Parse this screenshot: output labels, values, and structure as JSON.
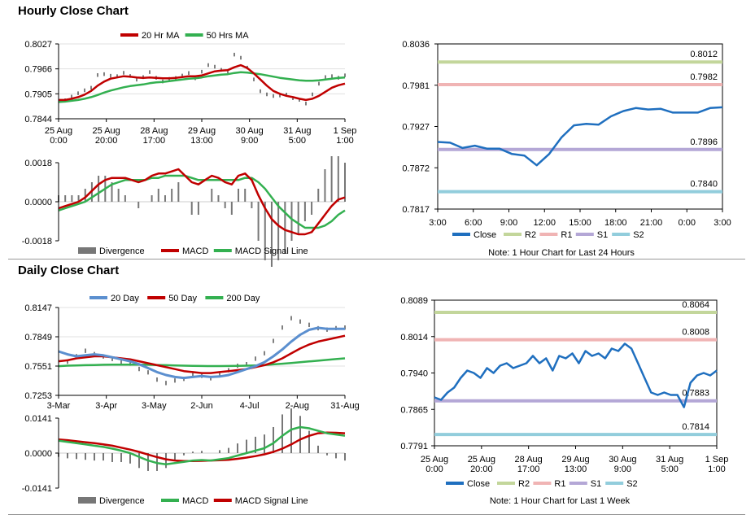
{
  "sections": {
    "hourly": {
      "title": "Hourly Close Chart"
    },
    "daily": {
      "title": "Daily Close Chart"
    }
  },
  "colors": {
    "red": "#c00000",
    "green": "#33b050",
    "blue": "#1f6fbf",
    "lightblue": "#5b8fcf",
    "r2": "#c3d69b",
    "r1": "#f0b4b4",
    "s1": "#b4a7d6",
    "s2": "#92cddc",
    "gray": "#777777"
  },
  "chart_data": [
    {
      "id": "hourly_price",
      "type": "line",
      "ylim": [
        0.7844,
        0.8027
      ],
      "yticks": [
        "0.8027",
        "0.7966",
        "0.7905",
        "0.7844"
      ],
      "xticks": [
        "25 Aug\n0:00",
        "25 Aug\n20:00",
        "28 Aug\n17:00",
        "29 Aug\n13:00",
        "30 Aug\n9:00",
        "31 Aug\n5:00",
        "1 Sep\n1:00"
      ],
      "legend": [
        "20 Hr MA",
        "50 Hrs MA"
      ],
      "close": [
        0.7895,
        0.789,
        0.7898,
        0.7905,
        0.7915,
        0.792,
        0.795,
        0.7955,
        0.795,
        0.7948,
        0.7955,
        0.795,
        0.794,
        0.7945,
        0.796,
        0.7945,
        0.7935,
        0.794,
        0.7945,
        0.795,
        0.7955,
        0.7945,
        0.796,
        0.7975,
        0.797,
        0.7965,
        0.796,
        0.8,
        0.7995,
        0.797,
        0.794,
        0.791,
        0.7905,
        0.79,
        0.79,
        0.7905,
        0.7895,
        0.789,
        0.788,
        0.7905,
        0.793,
        0.7945,
        0.795,
        0.7945,
        0.795
      ],
      "ma20": [
        0.789,
        0.789,
        0.7893,
        0.7897,
        0.7903,
        0.7912,
        0.7925,
        0.7935,
        0.7942,
        0.7945,
        0.7948,
        0.7947,
        0.7945,
        0.7944,
        0.7945,
        0.7944,
        0.7943,
        0.7943,
        0.7944,
        0.7946,
        0.7948,
        0.7948,
        0.795,
        0.7955,
        0.796,
        0.7962,
        0.7963,
        0.797,
        0.7975,
        0.7968,
        0.7955,
        0.794,
        0.7925,
        0.7912,
        0.7905,
        0.79,
        0.7897,
        0.7893,
        0.789,
        0.7893,
        0.79,
        0.791,
        0.792,
        0.7926,
        0.793
      ],
      "ma50": [
        0.7885,
        0.7886,
        0.7888,
        0.789,
        0.7893,
        0.7897,
        0.7902,
        0.7908,
        0.7913,
        0.7917,
        0.7921,
        0.7924,
        0.7926,
        0.7928,
        0.7931,
        0.7933,
        0.7934,
        0.7936,
        0.7938,
        0.794,
        0.7942,
        0.7943,
        0.7945,
        0.7948,
        0.795,
        0.7952,
        0.7953,
        0.7956,
        0.7958,
        0.7957,
        0.7955,
        0.7953,
        0.795,
        0.7947,
        0.7944,
        0.7942,
        0.794,
        0.7938,
        0.7937,
        0.7937,
        0.7938,
        0.794,
        0.7942,
        0.7944,
        0.7945
      ]
    },
    {
      "id": "hourly_macd",
      "type": "line",
      "ylim": [
        -0.0018,
        0.0018
      ],
      "yticks": [
        "0.0018",
        "0.0000",
        "-0.0018"
      ],
      "legend": [
        "Divergence",
        "MACD",
        "MACD Signal Line"
      ],
      "macd": [
        -0.0003,
        -0.0002,
        -0.0001,
        0.0,
        0.0002,
        0.0005,
        0.0008,
        0.001,
        0.0011,
        0.0011,
        0.0011,
        0.001,
        0.0009,
        0.001,
        0.0012,
        0.0013,
        0.0013,
        0.0014,
        0.0015,
        0.0012,
        0.0009,
        0.0008,
        0.001,
        0.0012,
        0.0011,
        0.0009,
        0.0008,
        0.0012,
        0.0013,
        0.001,
        0.0003,
        -0.0003,
        -0.0008,
        -0.0011,
        -0.0013,
        -0.0014,
        -0.0015,
        -0.0015,
        -0.0014,
        -0.001,
        -0.0006,
        -0.0002,
        0.0001,
        0.0002
      ],
      "signal": [
        -0.0004,
        -0.0003,
        -0.0002,
        -0.0001,
        0.0,
        0.0002,
        0.0004,
        0.0006,
        0.0008,
        0.0009,
        0.001,
        0.001,
        0.001,
        0.001,
        0.0011,
        0.0011,
        0.0012,
        0.0012,
        0.0012,
        0.0012,
        0.0011,
        0.001,
        0.001,
        0.001,
        0.001,
        0.001,
        0.001,
        0.001,
        0.0011,
        0.0011,
        0.0009,
        0.0006,
        0.0002,
        -0.0002,
        -0.0005,
        -0.0008,
        -0.001,
        -0.0012,
        -0.0012,
        -0.0012,
        -0.0011,
        -0.0009,
        -0.0006,
        -0.0004
      ]
    },
    {
      "id": "hourly_24h",
      "type": "line",
      "ylim": [
        0.7817,
        0.8036
      ],
      "yticks": [
        "0.8036",
        "0.7981",
        "0.7927",
        "0.7872",
        "0.7817"
      ],
      "xticks": [
        "3:00",
        "6:00",
        "9:00",
        "12:00",
        "15:00",
        "18:00",
        "21:00",
        "0:00",
        "3:00"
      ],
      "legend": [
        "Close",
        "R2",
        "R1",
        "S1",
        "S2"
      ],
      "levels": {
        "R2": 0.8012,
        "R1": 0.7982,
        "S1": 0.7896,
        "S2": 0.784
      },
      "level_labels": {
        "R2": "0.8012",
        "R1": "0.7982",
        "S1": "0.7896",
        "S2": "0.7840"
      },
      "close": [
        0.7906,
        0.7905,
        0.7898,
        0.7901,
        0.7897,
        0.7897,
        0.789,
        0.7888,
        0.7875,
        0.789,
        0.7912,
        0.7928,
        0.793,
        0.7929,
        0.794,
        0.7947,
        0.7951,
        0.7949,
        0.795,
        0.7945,
        0.7945,
        0.7945,
        0.7951,
        0.7952
      ],
      "note": "Note: 1 Hour Chart for Last 24 Hours"
    },
    {
      "id": "daily_price",
      "type": "line",
      "ylim": [
        0.7253,
        0.8147
      ],
      "yticks": [
        "0.8147",
        "0.7849",
        "0.7551",
        "0.7253"
      ],
      "xticks": [
        "3-Mar",
        "3-Apr",
        "3-May",
        "2-Jun",
        "4-Jul",
        "2-Aug",
        "31-Aug"
      ],
      "legend": [
        "20 Day",
        "50 Day",
        "200 Day"
      ],
      "close": [
        0.758,
        0.76,
        0.765,
        0.77,
        0.768,
        0.765,
        0.762,
        0.76,
        0.758,
        0.752,
        0.748,
        0.742,
        0.738,
        0.74,
        0.743,
        0.747,
        0.745,
        0.742,
        0.747,
        0.751,
        0.755,
        0.758,
        0.763,
        0.768,
        0.78,
        0.795,
        0.804,
        0.8,
        0.798,
        0.794,
        0.792,
        0.793,
        0.795
      ],
      "ma20": [
        0.77,
        0.767,
        0.765,
        0.766,
        0.767,
        0.766,
        0.764,
        0.762,
        0.76,
        0.757,
        0.753,
        0.749,
        0.746,
        0.744,
        0.743,
        0.744,
        0.745,
        0.744,
        0.7445,
        0.746,
        0.749,
        0.752,
        0.755,
        0.759,
        0.765,
        0.772,
        0.78,
        0.787,
        0.792,
        0.794,
        0.793,
        0.793,
        0.793
      ],
      "ma50": [
        0.76,
        0.761,
        0.763,
        0.764,
        0.765,
        0.765,
        0.764,
        0.763,
        0.762,
        0.76,
        0.758,
        0.756,
        0.754,
        0.752,
        0.75,
        0.749,
        0.748,
        0.748,
        0.749,
        0.75,
        0.751,
        0.752,
        0.754,
        0.756,
        0.759,
        0.763,
        0.768,
        0.773,
        0.777,
        0.78,
        0.782,
        0.784,
        0.786
      ],
      "ma200": [
        0.755,
        0.7555,
        0.7558,
        0.756,
        0.7562,
        0.7564,
        0.7565,
        0.7566,
        0.7566,
        0.7565,
        0.7564,
        0.7562,
        0.756,
        0.7558,
        0.7555,
        0.7553,
        0.7552,
        0.7551,
        0.7551,
        0.7552,
        0.7553,
        0.7555,
        0.7558,
        0.7562,
        0.7568,
        0.7575,
        0.7582,
        0.759,
        0.7598,
        0.7606,
        0.7614,
        0.7622,
        0.763
      ]
    },
    {
      "id": "daily_macd",
      "type": "line",
      "ylim": [
        -0.0141,
        0.0141
      ],
      "yticks": [
        "0.0141",
        "0.0000",
        "-0.0141"
      ],
      "legend": [
        "Divergence",
        "MACD",
        "MACD Signal Line"
      ],
      "macd": [
        0.005,
        0.0045,
        0.004,
        0.0035,
        0.003,
        0.0025,
        0.0018,
        0.001,
        0.0,
        -0.0015,
        -0.003,
        -0.004,
        -0.0045,
        -0.004,
        -0.0035,
        -0.003,
        -0.0028,
        -0.003,
        -0.0025,
        -0.002,
        -0.001,
        0.0,
        0.001,
        0.002,
        0.004,
        0.007,
        0.0095,
        0.0105,
        0.01,
        0.009,
        0.008,
        0.0075,
        0.007
      ],
      "signal": [
        0.0055,
        0.0052,
        0.0048,
        0.0044,
        0.004,
        0.0035,
        0.003,
        0.0022,
        0.0014,
        0.0005,
        -0.0006,
        -0.0016,
        -0.0025,
        -0.003,
        -0.0032,
        -0.0032,
        -0.0031,
        -0.003,
        -0.0029,
        -0.0027,
        -0.0023,
        -0.0018,
        -0.0012,
        -0.0005,
        0.0005,
        0.0018,
        0.0035,
        0.0055,
        0.007,
        0.008,
        0.0083,
        0.0082,
        0.008
      ]
    },
    {
      "id": "daily_week",
      "type": "line",
      "ylim": [
        0.7791,
        0.8089
      ],
      "yticks": [
        "0.8089",
        "0.8014",
        "0.7940",
        "0.7865",
        "0.7791"
      ],
      "xticks": [
        "25 Aug\n0:00",
        "25 Aug\n20:00",
        "28 Aug\n17:00",
        "29 Aug\n13:00",
        "30 Aug\n9:00",
        "31 Aug\n5:00",
        "1 Sep\n1:00"
      ],
      "legend": [
        "Close",
        "R2",
        "R1",
        "S1",
        "S2"
      ],
      "levels": {
        "R2": 0.8064,
        "R1": 0.8008,
        "S1": 0.7883,
        "S2": 0.7814
      },
      "level_labels": {
        "R2": "0.8064",
        "R1": "0.8008",
        "S1": "0.7883",
        "S2": "0.7814"
      },
      "close": [
        0.789,
        0.7885,
        0.79,
        0.791,
        0.793,
        0.7945,
        0.794,
        0.793,
        0.795,
        0.794,
        0.7955,
        0.796,
        0.795,
        0.7955,
        0.796,
        0.7975,
        0.796,
        0.797,
        0.7945,
        0.7975,
        0.797,
        0.798,
        0.796,
        0.7985,
        0.7975,
        0.798,
        0.797,
        0.799,
        0.7985,
        0.8,
        0.799,
        0.796,
        0.793,
        0.79,
        0.7895,
        0.79,
        0.7895,
        0.7895,
        0.787,
        0.792,
        0.7935,
        0.794,
        0.7935,
        0.7945
      ],
      "note": "Note: 1 Hour Chart for Last 1 Week"
    }
  ]
}
